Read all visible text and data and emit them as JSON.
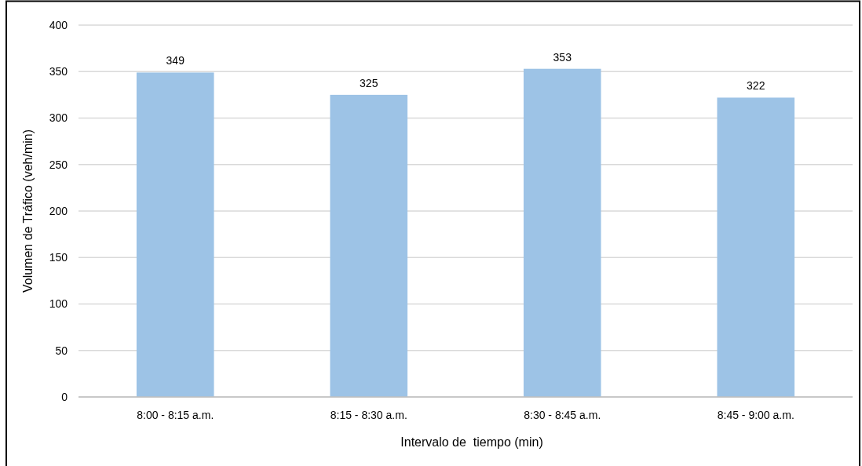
{
  "chart_data": {
    "type": "bar",
    "xlabel": "Intervalo de  tiempo (min)",
    "ylabel": "Volumen de Tráfico (veh/min)",
    "categories": [
      "8:00 - 8:15 a.m.",
      "8:15 - 8:30 a.m.",
      "8:30 - 8:45 a.m.",
      "8:45 - 9:00 a.m."
    ],
    "values": [
      349,
      325,
      353,
      322
    ],
    "color": "#9dc3e6",
    "ylim": [
      0,
      400
    ],
    "yticks": [
      0,
      50,
      100,
      150,
      200,
      250,
      300,
      350,
      400
    ],
    "grid": "y",
    "data_labels": true
  }
}
